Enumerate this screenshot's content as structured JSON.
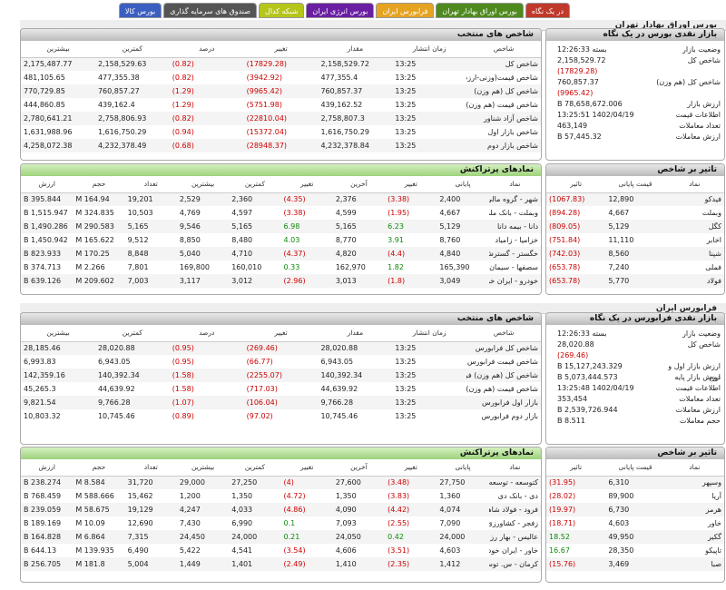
{
  "tabs": [
    {
      "label": "در یک نگاه",
      "color": "#c0392b"
    },
    {
      "label": "بورس اوراق بهادار تهران",
      "color": "#4e8a1e"
    },
    {
      "label": "فرابورس ایران",
      "color": "#e6a321"
    },
    {
      "label": "بورس انرژی ایران",
      "color": "#6a1fa3"
    },
    {
      "label": "شبکه کدال",
      "color": "#b5c61a"
    },
    {
      "label": "صندوق های سرمایه گذاری",
      "color": "#555555"
    },
    {
      "label": "بورس کالا",
      "color": "#3b5fc0"
    }
  ],
  "tehran": {
    "section_title": "بورس اوراق بهادار تهران",
    "index_panel_title": "شاخص های منتخب",
    "index_headers": [
      "شاخص",
      "زمان انتشار",
      "مقدار",
      "تغییر",
      "درصد",
      "کمترین",
      "بیشترین"
    ],
    "index_rows": [
      [
        "شاخص کل",
        "13:25",
        "2,158,529.72",
        "(17829.28)",
        "(0.82)",
        "2,158,529.63",
        "2,175,487.77"
      ],
      [
        "شاخص قیمت(وزنی-ارزشی)",
        "13:25",
        "477,355.4",
        "(3942.92)",
        "(0.82)",
        "477,355.38",
        "481,105.65"
      ],
      [
        "شاخص کل (هم وزن)",
        "13:25",
        "760,857.37",
        "(9965.42)",
        "(1.29)",
        "760,857.27",
        "770,729.85"
      ],
      [
        "شاخص قیمت (هم وزن)",
        "13:25",
        "439,162.52",
        "(5751.98)",
        "(1.29)",
        "439,162.4",
        "444,860.85"
      ],
      [
        "شاخص آزاد شناور",
        "13:25",
        "2,758,807.3",
        "(22810.04)",
        "(0.82)",
        "2,758,806.93",
        "2,780,641.21"
      ],
      [
        "شاخص بازار اول",
        "13:25",
        "1,616,750.29",
        "(15372.04)",
        "(0.94)",
        "1,616,750.29",
        "1,631,988.96"
      ],
      [
        "شاخص بازار دوم",
        "13:25",
        "4,232,378.84",
        "(28948.37)",
        "(0.68)",
        "4,232,378.49",
        "4,258,072.38"
      ]
    ],
    "market_panel_title": "بازار نقدی بورس در یک نگاه",
    "market": [
      {
        "k": "وضعیت بازار",
        "v": "بسته 12:26:33"
      },
      {
        "k": "شاخص کل",
        "v": "2,158,529.72",
        "v2": "(17829.28)"
      },
      {
        "k": "شاخص کل (هم وزن)",
        "v": "760,857.37",
        "v2": "(9965.42)"
      },
      {
        "k": "ارزش بازار",
        "v": "78,658,672.006 B"
      },
      {
        "k": "اطلاعات قیمت",
        "v": "1402/04/19 13:25:51"
      },
      {
        "k": "تعداد معاملات",
        "v": "463,149"
      },
      {
        "k": "ارزش معاملات",
        "v": "57,445.32 B"
      }
    ],
    "trades_panel_title": "نمادهای پرتراکنش",
    "trades_headers": [
      "نماد",
      "پایانی",
      "تغییر",
      "آخرین",
      "تغییر",
      "کمترین",
      "بیشترین",
      "تعداد",
      "حجم",
      "ارزش"
    ],
    "trades_rows": [
      [
        "شهر - گروه مالی شهر",
        "2,400",
        "(3.38)",
        "2,376",
        "(4.35)",
        "2,360",
        "2,529",
        "19,201",
        "164.94 M",
        "395.844 B"
      ],
      [
        "وبملت - بانک ملت",
        "4,667",
        "(1.95)",
        "4,599",
        "(3.38)",
        "4,597",
        "4,769",
        "10,503",
        "324.835 M",
        "1,515.947 B"
      ],
      [
        "دانا - بیمه دانا",
        "5,129",
        "6.23",
        "5,165",
        "6.98",
        "5,165",
        "9,546",
        "5,165",
        "290.583 M",
        "1,490.286 B"
      ],
      [
        "خزامیا - زامیاد",
        "8,760",
        "3.91",
        "8,770",
        "4.03",
        "8,480",
        "8,850",
        "9,512",
        "165.622 M",
        "1,450.942 B"
      ],
      [
        "خگستر - گسترش‌سرمایه‌گذاری‌ایران‌خ",
        "4,840",
        "(4.4)",
        "4,820",
        "(4.37)",
        "4,710",
        "5,040",
        "8,848",
        "170.25 M",
        "823.933 B"
      ],
      [
        "سصفها - سیمان‌اصفهان",
        "165,390",
        "1.82",
        "162,970",
        "0.33",
        "160,010",
        "169,800",
        "7,801",
        "2.266 M",
        "374.713 B"
      ],
      [
        "خودرو - ایران‌ خودرو",
        "3,049",
        "(1.8)",
        "3,013",
        "(2.96)",
        "3,012",
        "3,117",
        "7,003",
        "209.602 M",
        "639.126 B"
      ]
    ],
    "impact_panel_title": "تاثیر بر شاخص",
    "impact_headers": [
      "نماد",
      "قیمت پایانی",
      "تاثیر"
    ],
    "impact_rows": [
      [
        "فیدکو",
        "12,890",
        "(1067.83)"
      ],
      [
        "وبملت",
        "4,667",
        "(894.28)"
      ],
      [
        "کگل",
        "5,129",
        "(809.05)"
      ],
      [
        "اخابر",
        "11,110",
        "(751.84)"
      ],
      [
        "شپنا",
        "8,560",
        "(742.03)"
      ],
      [
        "فملی",
        "7,240",
        "(653.78)"
      ],
      [
        "فولاد",
        "5,770",
        "(653.78)"
      ]
    ]
  },
  "fara": {
    "section_title": "فرابورس ایران",
    "index_panel_title": "شاخص های منتخب",
    "index_headers": [
      "شاخص",
      "زمان انتشار",
      "مقدار",
      "تغییر",
      "درصد",
      "کمترین",
      "بیشترین"
    ],
    "index_rows": [
      [
        "شاخص کل فرابورس",
        "13:25",
        "28,020.88",
        "(269.46)",
        "(0.95)",
        "28,020.88",
        "28,185.46"
      ],
      [
        "شاخص قیمت فرابورس",
        "13:25",
        "6,943.05",
        "(66.77)",
        "(0.95)",
        "6,943.05",
        "6,993.83"
      ],
      [
        "شاخص کل (هم وزن) فرابورس",
        "13:25",
        "140,392.34",
        "(2255.07)",
        "(1.58)",
        "140,392.34",
        "142,359.16"
      ],
      [
        "شاخص قیمت (هم وزن) فرا...",
        "13:25",
        "44,639.92",
        "(717.03)",
        "(1.58)",
        "44,639.92",
        "45,265.3"
      ],
      [
        "بازار اول فرابورس",
        "13:25",
        "9,766.28",
        "(106.04)",
        "(1.07)",
        "9,766.28",
        "9,821.54"
      ],
      [
        "بازار دوم فرابورس",
        "13:25",
        "10,745.46",
        "(97.02)",
        "(0.89)",
        "10,745.46",
        "10,803.32"
      ]
    ],
    "market_panel_title": "بازار نقدی فرابورس در یک نگاه",
    "market": [
      {
        "k": "وضعیت بازار",
        "v": "بسته 12:26:33"
      },
      {
        "k": "شاخص کل",
        "v": "28,020.88",
        "v2": "(269.46)"
      },
      {
        "k": "ارزش بازار اول و دوم",
        "v": "15,127,243.329 B"
      },
      {
        "k": "ارزش بازار پایه",
        "v": "5,073,444.573 B"
      },
      {
        "k": "اطلاعات قیمت",
        "v": "1402/04/19 13:25:48"
      },
      {
        "k": "تعداد معاملات",
        "v": "353,454"
      },
      {
        "k": "ارزش معاملات",
        "v": "2,539,726.944 B"
      },
      {
        "k": "حجم معاملات",
        "v": "8.511 B"
      }
    ],
    "trades_panel_title": "نمادهای پرتراکنش",
    "trades_headers": [
      "نماد",
      "پایانی",
      "تغییر",
      "آخرین",
      "تغییر",
      "کمترین",
      "بیشترین",
      "تعداد",
      "حجم",
      "ارزش"
    ],
    "trades_rows": [
      [
        "کتوسعه - توسعه صنایع و معادن کوثر",
        "27,750",
        "(3.48)",
        "27,600",
        "(4)",
        "27,250",
        "29,000",
        "31,720",
        "8.584 M",
        "238.274 B"
      ],
      [
        "دی - بانک دی",
        "1,360",
        "(3.83)",
        "1,350",
        "(4.72)",
        "1,350",
        "1,200",
        "15,462",
        "588.666 M",
        "768.459 B"
      ],
      [
        "فرود - فولاد شاهرود",
        "4,074",
        "(4.42)",
        "4,090",
        "(4.86)",
        "4,033",
        "4,247",
        "19,129",
        "58.675 M",
        "239.059 B"
      ],
      [
        "زفجر - کشاورزی و دامپروری فجر اصفهان",
        "7,090",
        "(2.55)",
        "7,093",
        "0.1",
        "6,990",
        "7,430",
        "12,690",
        "10.09 M",
        "189.169 B"
      ],
      [
        "عالیس - بهار رز عالیس چناران",
        "24,000",
        "0.42",
        "24,050",
        "0.21",
        "24,000",
        "24,450",
        "7,315",
        "6.864 M",
        "164.828 B"
      ],
      [
        "خاور - ایران‌ خودرو دیزل",
        "4,603",
        "(3.51)",
        "4,606",
        "(3.54)",
        "4,541",
        "5,422",
        "6,490",
        "139.935 M",
        "644.13 B"
      ],
      [
        "کرمان - س. توسعه و عمران استان کرم...",
        "1,412",
        "(2.35)",
        "1,410",
        "(2.49)",
        "1,401",
        "1,449",
        "5,004",
        "181.8 M",
        "256.705 B"
      ]
    ],
    "impact_panel_title": "تاثیر بر شاخص",
    "impact_headers": [
      "نماد",
      "قیمت پایانی",
      "تاثیر"
    ],
    "impact_rows": [
      [
        "وسپهر",
        "6,310",
        "(31.95)"
      ],
      [
        "آریا",
        "89,900",
        "(28.02)"
      ],
      [
        "هرمز",
        "6,730",
        "(19.97)"
      ],
      [
        "خاور",
        "4,603",
        "(18.71)"
      ],
      [
        "گکیر",
        "49,950",
        "18.52"
      ],
      [
        "تاپیکو",
        "28,350",
        "16.67"
      ],
      [
        "صبا",
        "3,469",
        "(15.76)"
      ]
    ]
  }
}
